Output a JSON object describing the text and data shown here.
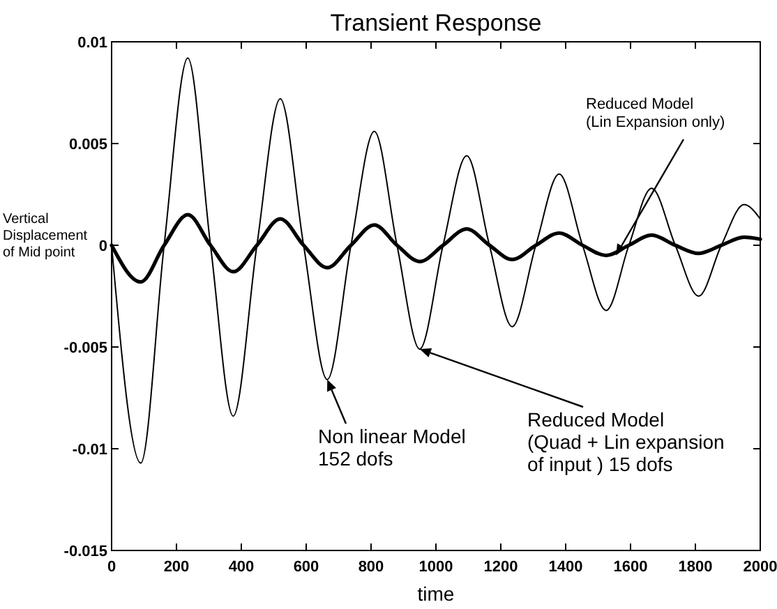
{
  "chart_data": {
    "type": "line",
    "title": "Transient Response",
    "xlabel": "time",
    "ylabel": "Vertical\nDisplacement\nof Mid point",
    "xlim": [
      0,
      2000
    ],
    "xticks": [
      0,
      200,
      400,
      600,
      800,
      1000,
      1200,
      1400,
      1600,
      1800,
      2000
    ],
    "ylim": [
      -0.015,
      0.01
    ],
    "yticks": [
      -0.015,
      -0.01,
      -0.005,
      0,
      0.005,
      0.01
    ],
    "grid": false,
    "marker": "none",
    "line_style": "solid",
    "series": [
      {
        "color": "#000000",
        "x": [
          0,
          90,
          162,
          235,
          305,
          375,
          448,
          520,
          592,
          665,
          738,
          810,
          880,
          950,
          1022,
          1095,
          1165,
          1235,
          1308,
          1380,
          1452,
          1525,
          1595,
          1665,
          1738,
          1810,
          1880,
          1950,
          2000
        ],
        "values": [
          0,
          -0.0107,
          0,
          0.0092,
          0,
          -0.0084,
          0,
          0.0072,
          0,
          -0.0066,
          0,
          0.0056,
          0,
          -0.0051,
          0,
          0.0044,
          0,
          -0.004,
          0,
          0.0035,
          0,
          -0.0032,
          0,
          0.0028,
          0,
          -0.0025,
          0,
          0.002,
          0.0013
        ]
      },
      {
        "color": "#000000",
        "x": [
          0,
          90,
          162,
          235,
          305,
          375,
          448,
          520,
          592,
          665,
          738,
          810,
          880,
          950,
          1022,
          1095,
          1165,
          1235,
          1308,
          1380,
          1452,
          1525,
          1595,
          1665,
          1738,
          1810,
          1880,
          1950,
          2000
        ],
        "values": [
          0,
          -0.0018,
          0,
          0.0015,
          0,
          -0.0013,
          0,
          0.0013,
          0,
          -0.0011,
          0,
          0.001,
          0,
          -0.0008,
          0,
          0.0008,
          0,
          -0.0007,
          0,
          0.0006,
          0,
          -0.0005,
          0,
          0.0005,
          0,
          -0.0004,
          0,
          0.0004,
          0.0003
        ]
      }
    ],
    "annotations": [
      {
        "text": "Reduced Model\n(Lin Expansion only)",
        "x": 1555,
        "y": -0.0005
      },
      {
        "text": "Non linear Model\n152 dofs",
        "x": 665,
        "y": -0.0066
      },
      {
        "text": "Reduced Model\n(Quad + Lin expansion\nof input ) 15 dofs",
        "x": 950,
        "y": -0.0051
      }
    ]
  }
}
